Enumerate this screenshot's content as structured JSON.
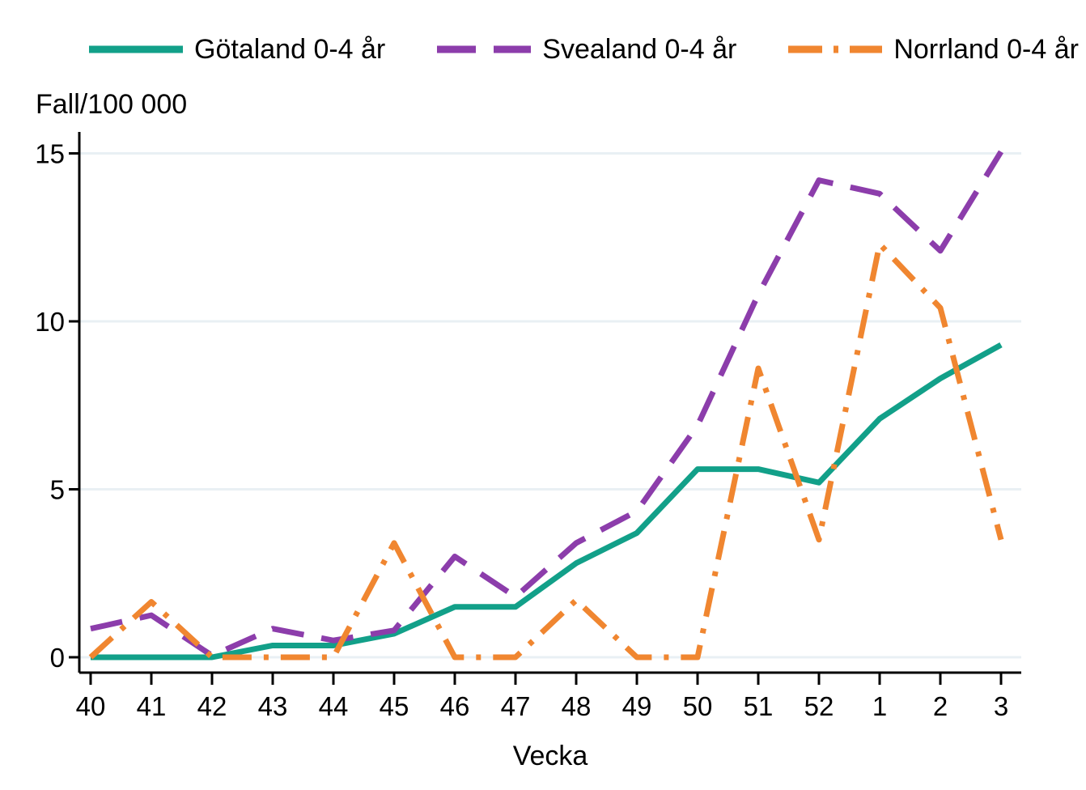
{
  "chart_data": {
    "type": "line",
    "title": "",
    "ylabel": "Fall/100 000",
    "xlabel": "Vecka",
    "categories": [
      "40",
      "41",
      "42",
      "43",
      "44",
      "45",
      "46",
      "47",
      "48",
      "49",
      "50",
      "51",
      "52",
      "1",
      "2",
      "3"
    ],
    "y_ticks": [
      0,
      5,
      10,
      15
    ],
    "ylim": [
      0,
      15.6
    ],
    "grid": true,
    "legend_position": "top",
    "series": [
      {
        "name": "Götaland 0-4 år",
        "color": "#12a089",
        "dash": "solid",
        "values": [
          0,
          0,
          0,
          0.35,
          0.35,
          0.7,
          1.5,
          1.5,
          2.8,
          3.7,
          5.6,
          5.6,
          5.2,
          7.1,
          8.3,
          9.3
        ]
      },
      {
        "name": "Svealand 0-4 år",
        "color": "#8c3dab",
        "dash": "dashed",
        "values": [
          0.85,
          1.25,
          0.05,
          0.85,
          0.5,
          0.8,
          3.0,
          1.8,
          3.4,
          4.35,
          6.9,
          10.8,
          14.2,
          13.8,
          12.1,
          15.05
        ]
      },
      {
        "name": "Norrland 0-4 år",
        "color": "#f08630",
        "dash": "dashdot",
        "values": [
          0,
          1.65,
          0,
          0,
          0,
          3.4,
          0,
          0,
          1.7,
          0,
          0,
          8.6,
          3.5,
          12.3,
          10.4,
          3.5
        ]
      }
    ]
  },
  "colors": {
    "axis": "#000000",
    "gridline": "#e9f0f4",
    "background": "#ffffff"
  }
}
